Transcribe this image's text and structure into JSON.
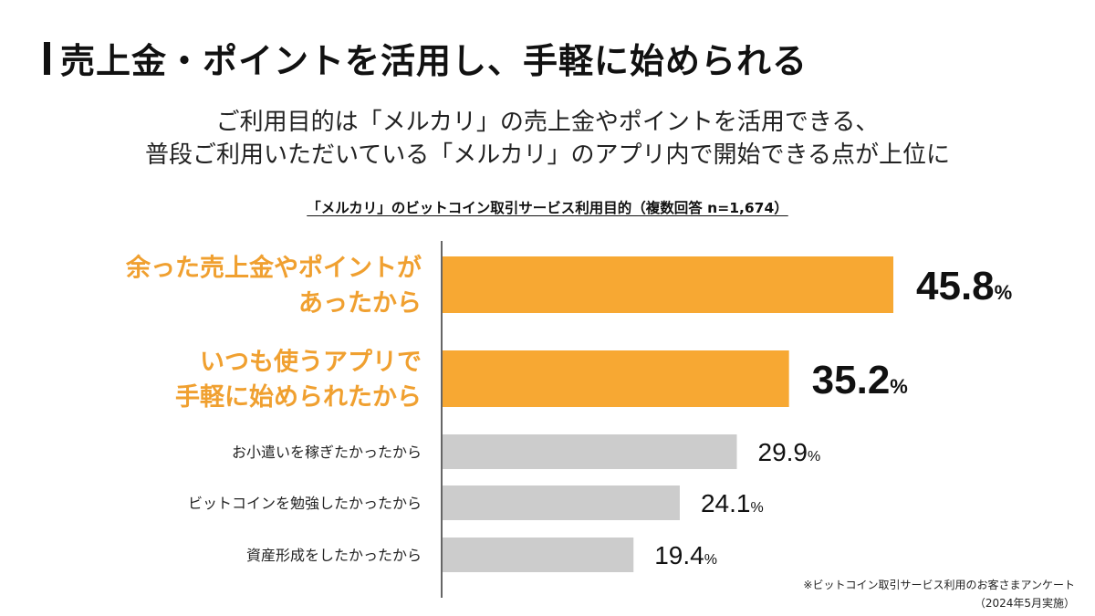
{
  "header": {
    "title": "売上金・ポイントを活用し、手軽に始められる",
    "subtitle_line1": "ご利用目的は「メルカリ」の売上金やポイントを活用できる、",
    "subtitle_line2": "普段ご利用いただいている「メルカリ」のアプリ内で開始できる点が上位に"
  },
  "chart_data": {
    "type": "bar",
    "orientation": "horizontal",
    "title": "「メルカリ」のビットコイン取引サービス利用目的（複数回答 n=1,674）",
    "unit": "%",
    "xlim": [
      0,
      50
    ],
    "bars": [
      {
        "label_lines": [
          "余った売上金やポイントが",
          "あったから"
        ],
        "value": 45.8,
        "value_text": "45.8",
        "highlight": true
      },
      {
        "label_lines": [
          "いつも使うアプリで",
          "手軽に始められたから"
        ],
        "value": 35.2,
        "value_text": "35.2",
        "highlight": true
      },
      {
        "label_lines": [
          "お小遣いを稼ぎたかったから"
        ],
        "value": 29.9,
        "value_text": "29.9",
        "highlight": false
      },
      {
        "label_lines": [
          "ビットコインを勉強したかったから"
        ],
        "value": 24.1,
        "value_text": "24.1",
        "highlight": false
      },
      {
        "label_lines": [
          "資産形成をしたかったから"
        ],
        "value": 19.4,
        "value_text": "19.4",
        "highlight": false
      }
    ],
    "colors": {
      "highlight": "#F7A833",
      "normal": "#CCCCCC",
      "highlight_label": "#F0A030",
      "axis": "#333333"
    }
  },
  "footnote": {
    "line1": "※ビットコイン取引サービス利用のお客さまアンケート",
    "line2": "（2024年5月実施）"
  }
}
